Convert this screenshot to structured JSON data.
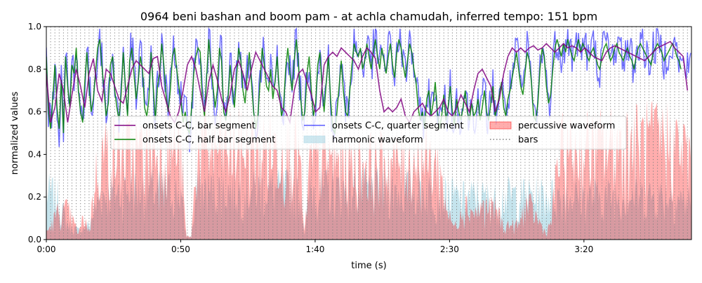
{
  "chart_data": {
    "type": "line",
    "title": "0964 beni bashan and boom pam - at achla chamudah, inferred tempo: 151 bpm",
    "xlabel": "time (s)",
    "ylabel": "normalized values",
    "xlim": [
      0,
      240
    ],
    "ylim": [
      0,
      1.0
    ],
    "x_ticks": [
      0,
      50,
      100,
      150,
      200
    ],
    "x_tick_labels": [
      "0:00",
      "0:50",
      "1:40",
      "2:30",
      "3:20"
    ],
    "y_ticks": [
      0,
      0.2,
      0.4,
      0.6,
      0.8,
      1.0
    ],
    "y_tick_labels": [
      "0.0",
      "0.2",
      "0.4",
      "0.6",
      "0.8",
      "1.0"
    ],
    "bar_period_s": 1.59,
    "legend": {
      "placement": "center",
      "entries": [
        {
          "label": "onsets C-C, bar segment",
          "color": "#800080",
          "style": "line"
        },
        {
          "label": "onsets C-C, half bar segment",
          "color": "#008000",
          "style": "line"
        },
        {
          "label": "onsets C-C, quarter segment",
          "color": "#0000ff",
          "style": "line"
        },
        {
          "label": "harmonic waveform",
          "color": "#add8e6",
          "style": "patch"
        },
        {
          "label": "percussive waveform",
          "color": "#ff0000",
          "style": "patch"
        },
        {
          "label": "bars",
          "color": "#808080",
          "style": "dotted"
        }
      ]
    },
    "series": [
      {
        "name": "onsets C-C, bar segment",
        "color": "#800080",
        "x_step": 1.59,
        "values": [
          0.78,
          0.55,
          0.62,
          0.78,
          0.7,
          0.55,
          0.68,
          0.8,
          0.72,
          0.62,
          0.78,
          0.85,
          0.7,
          0.65,
          0.8,
          0.78,
          0.72,
          0.66,
          0.64,
          0.72,
          0.8,
          0.84,
          0.82,
          0.8,
          0.78,
          0.85,
          0.86,
          0.72,
          0.65,
          0.58,
          0.55,
          0.6,
          0.7,
          0.82,
          0.86,
          0.8,
          0.7,
          0.6,
          0.74,
          0.82,
          0.75,
          0.66,
          0.6,
          0.68,
          0.8,
          0.84,
          0.78,
          0.7,
          0.8,
          0.88,
          0.84,
          0.8,
          0.76,
          0.72,
          0.7,
          0.62,
          0.6,
          0.55,
          0.7,
          0.78,
          0.8,
          0.74,
          0.68,
          0.6,
          0.62,
          0.82,
          0.86,
          0.88,
          0.86,
          0.9,
          0.88,
          0.86,
          0.84,
          0.8,
          0.86,
          0.9,
          0.88,
          0.85,
          0.7,
          0.6,
          0.62,
          0.6,
          0.62,
          0.66,
          0.58,
          0.55,
          0.6,
          0.62,
          0.64,
          0.6,
          0.58,
          0.6,
          0.62,
          0.66,
          0.6,
          0.58,
          0.62,
          0.68,
          0.64,
          0.6,
          0.7,
          0.78,
          0.8,
          0.76,
          0.72,
          0.6,
          0.66,
          0.78,
          0.86,
          0.9,
          0.88,
          0.9,
          0.88,
          0.9,
          0.91,
          0.89,
          0.9,
          0.92,
          0.9,
          0.88,
          0.9,
          0.92,
          0.9,
          0.91,
          0.9,
          0.88,
          0.9,
          0.88,
          0.86,
          0.85,
          0.84,
          0.88,
          0.9,
          0.91,
          0.9,
          0.89,
          0.88,
          0.87,
          0.86,
          0.85,
          0.84,
          0.86,
          0.88,
          0.9,
          0.91,
          0.92,
          0.93,
          0.9,
          0.88,
          0.86,
          0.7
        ]
      },
      {
        "name": "onsets C-C, half bar segment",
        "color": "#008000",
        "x_step": 0.795,
        "values": [
          0.86,
          0.6,
          0.52,
          0.66,
          0.82,
          0.62,
          0.52,
          0.75,
          0.5,
          0.86,
          0.72,
          0.62,
          0.82,
          0.78,
          0.9,
          0.7,
          0.6,
          0.55,
          0.74,
          0.88,
          0.72,
          0.6,
          0.66,
          0.78,
          0.9,
          0.94,
          0.82,
          0.7,
          0.58,
          0.64,
          0.82,
          0.86,
          0.7,
          0.62,
          0.56,
          0.68,
          0.88,
          0.72,
          0.58,
          0.84,
          0.9,
          0.78,
          0.66,
          0.74,
          0.86,
          0.8,
          0.62,
          0.58,
          0.66,
          0.88,
          0.72,
          0.56,
          0.72,
          0.78,
          0.92,
          0.82,
          0.68,
          0.6,
          0.7,
          0.86,
          0.9,
          0.8,
          0.72,
          0.65,
          0.55,
          0.6,
          0.52,
          0.5,
          0.62,
          0.78,
          0.86,
          0.9,
          0.88,
          0.66,
          0.58,
          0.76,
          0.94,
          0.82,
          0.72,
          0.62,
          0.7,
          0.9,
          0.84,
          0.6,
          0.56,
          0.66,
          0.82,
          0.72,
          0.62,
          0.76,
          0.9,
          0.84,
          0.7,
          0.64,
          0.78,
          0.88,
          0.74,
          0.6,
          0.52,
          0.58,
          0.74,
          0.9,
          0.82,
          0.72,
          0.7,
          0.8,
          0.66,
          0.74,
          0.86,
          0.7,
          0.58,
          0.62,
          0.8,
          0.9,
          0.78,
          0.7,
          0.84,
          0.94,
          0.82,
          0.66,
          0.56,
          0.6,
          0.78,
          0.86,
          0.7,
          0.58,
          0.64,
          0.82,
          0.88,
          0.72,
          0.6,
          0.74,
          0.86,
          0.66,
          0.52,
          0.5,
          0.6,
          0.72,
          0.84,
          0.7,
          0.6,
          0.58,
          0.7,
          0.82,
          0.92,
          0.88,
          0.86,
          0.9,
          0.8,
          0.84,
          0.92,
          0.86,
          0.8,
          0.88,
          0.94,
          0.86,
          0.8,
          0.9,
          0.84,
          0.78,
          0.86,
          0.92,
          0.82,
          0.76,
          0.88,
          0.94,
          0.9,
          0.82,
          0.76,
          0.84,
          0.92,
          0.88,
          0.8,
          0.74,
          0.62,
          0.56,
          0.6,
          0.52,
          0.66,
          0.7,
          0.58,
          0.64,
          0.74,
          0.6,
          0.52,
          0.58,
          0.68,
          0.56,
          0.62,
          0.72,
          0.6,
          0.54,
          0.66,
          0.6,
          0.56,
          0.62,
          0.7,
          0.6,
          0.56,
          0.64,
          0.58,
          0.6,
          0.66,
          0.56,
          0.62,
          0.7,
          0.6,
          0.56,
          0.64,
          0.72,
          0.58,
          0.62,
          0.68,
          0.74,
          0.62,
          0.58,
          0.66,
          0.7,
          0.76,
          0.82,
          0.88,
          0.8,
          0.72,
          0.68,
          0.78,
          0.88,
          0.84,
          0.74,
          0.58,
          0.56,
          0.64,
          0.8,
          0.9,
          0.86,
          0.72,
          0.64,
          0.68,
          0.8,
          0.9,
          0.94,
          0.9,
          0.86,
          0.92,
          0.88,
          0.94,
          0.9,
          0.86,
          0.84,
          0.9,
          0.94,
          0.88,
          0.92,
          0.9,
          0.86,
          0.84,
          0.88,
          0.9,
          0.86,
          0.82,
          0.8,
          0.86,
          0.9,
          0.92,
          0.88,
          0.84,
          0.86,
          0.9,
          0.92,
          0.88,
          0.86,
          0.84,
          0.88,
          0.9,
          0.86,
          0.84,
          0.8,
          0.86,
          0.9,
          0.92,
          0.9,
          0.88,
          0.86,
          0.84,
          0.82,
          0.88,
          0.9,
          0.92,
          0.9,
          0.88,
          0.84,
          0.86,
          0.88,
          0.9,
          0.92,
          0.9,
          0.86,
          0.84,
          0.8
        ]
      },
      {
        "name": "onsets C-C, quarter segment",
        "color": "#0000ff",
        "x_step": 0.3975,
        "amplitude": 0.1,
        "base_from": "onsets C-C, half bar segment",
        "note": ""
      }
    ],
    "areas": [
      {
        "name": "harmonic waveform",
        "color": "#add8e6",
        "envelope_x": [
          0,
          4,
          8,
          12,
          16,
          20,
          30,
          40,
          50,
          52,
          54,
          56,
          70,
          90,
          95,
          96,
          98,
          110,
          130,
          140,
          148,
          150,
          155,
          160,
          168,
          170,
          176,
          186,
          190,
          200,
          210,
          220,
          232,
          240
        ],
        "envelope_y": [
          0.32,
          0.3,
          0.1,
          0.06,
          0.1,
          0.3,
          0.34,
          0.34,
          0.32,
          0.02,
          0.02,
          0.34,
          0.34,
          0.34,
          0.3,
          0.02,
          0.34,
          0.34,
          0.34,
          0.34,
          0.3,
          0.3,
          0.28,
          0.3,
          0.26,
          0.3,
          0.3,
          0.3,
          0.3,
          0.3,
          0.3,
          0.3,
          0.3,
          0.26
        ]
      },
      {
        "name": "percussive waveform",
        "color": "#ff0000",
        "alpha": 0.35,
        "envelope_x": [
          0,
          2,
          4,
          8,
          10,
          12,
          14,
          16,
          18,
          20,
          22,
          30,
          38,
          44,
          46,
          50,
          52,
          54,
          56,
          58,
          60,
          70,
          80,
          90,
          94,
          96,
          98,
          100,
          110,
          120,
          130,
          140,
          146,
          148,
          150,
          152,
          154,
          156,
          158,
          160,
          162,
          168,
          170,
          172,
          176,
          178,
          180,
          184,
          186,
          188,
          190,
          192,
          200,
          210,
          220,
          230,
          236,
          240
        ],
        "envelope_y": [
          0.05,
          0.1,
          0.18,
          0.2,
          0.12,
          0.04,
          0.16,
          0.05,
          0.4,
          0.55,
          0.6,
          0.6,
          0.6,
          0.62,
          0.64,
          0.6,
          0.02,
          0.02,
          0.6,
          0.62,
          0.62,
          0.62,
          0.62,
          0.62,
          0.6,
          0.02,
          0.5,
          0.55,
          0.52,
          0.52,
          0.52,
          0.55,
          0.5,
          0.3,
          0.15,
          0.08,
          0.2,
          0.24,
          0.2,
          0.18,
          0.22,
          0.2,
          0.08,
          0.1,
          0.1,
          0.24,
          0.22,
          0.1,
          0.04,
          0.14,
          0.5,
          0.6,
          0.62,
          0.64,
          0.66,
          0.68,
          0.62,
          0.55
        ]
      }
    ]
  }
}
